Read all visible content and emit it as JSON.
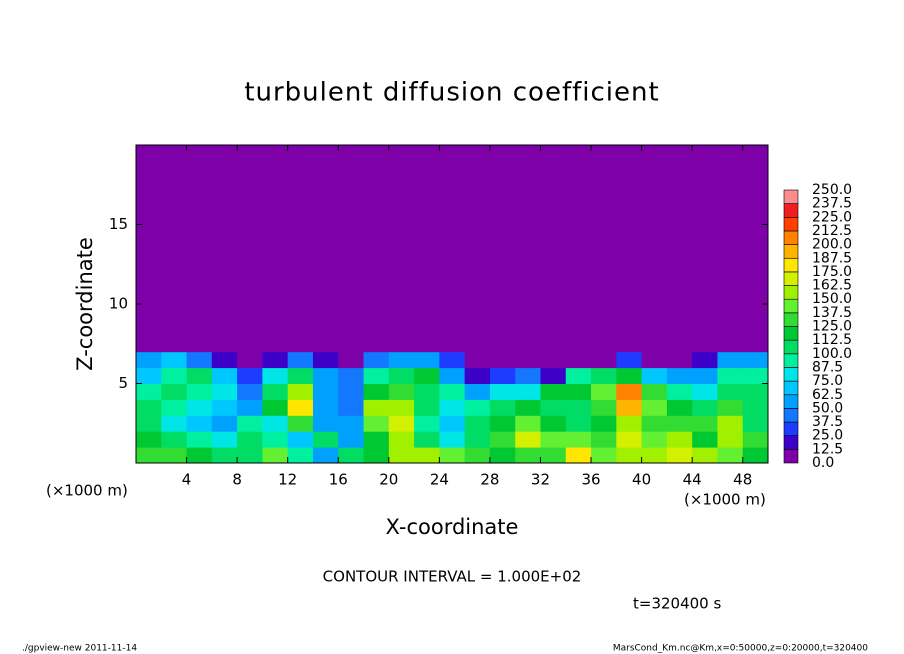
{
  "chart_data": {
    "type": "heatmap",
    "title": "turbulent diffusion coefficient",
    "xlabel": "X-coordinate",
    "ylabel": "Z-coordinate",
    "xunit_left": "(×1000 m)",
    "xunit_right": "(×1000 m)",
    "annotation": "CONTOUR INTERVAL = 1.000E+02",
    "time_label": "t=320400 s",
    "footer_left": "./gpview-new  2011-11-14",
    "footer_right": "MarsCond_Km.nc@Km,x=0:50000,z=0:20000,t=320400",
    "xlim": [
      0,
      50
    ],
    "ylim": [
      0,
      20
    ],
    "xticks": [
      4,
      8,
      12,
      16,
      20,
      24,
      28,
      32,
      36,
      40,
      44,
      48
    ],
    "yticks": [
      5,
      10,
      15
    ],
    "x_edges": [
      0,
      2,
      4,
      6,
      8,
      10,
      12,
      14,
      16,
      18,
      20,
      22,
      24,
      26,
      28,
      30,
      32,
      34,
      36,
      38,
      40,
      42,
      44,
      46,
      48,
      50
    ],
    "y_edges": [
      0,
      1,
      2,
      3,
      4,
      5,
      6,
      7,
      8,
      20
    ],
    "z": [
      [
        130,
        125,
        120,
        110,
        100,
        140,
        90,
        60,
        110,
        120,
        150,
        160,
        140,
        130,
        120,
        125,
        135,
        180,
        140,
        150,
        160,
        170,
        150,
        140,
        120
      ],
      [
        120,
        110,
        90,
        80,
        100,
        90,
        70,
        100,
        60,
        120,
        150,
        110,
        80,
        110,
        130,
        170,
        140,
        140,
        130,
        170,
        140,
        150,
        120,
        160,
        130
      ],
      [
        110,
        80,
        70,
        60,
        90,
        80,
        130,
        60,
        50,
        140,
        170,
        90,
        70,
        100,
        120,
        140,
        120,
        110,
        120,
        160,
        130,
        130,
        130,
        150,
        110
      ],
      [
        100,
        90,
        80,
        70,
        60,
        120,
        180,
        50,
        40,
        150,
        160,
        100,
        80,
        90,
        110,
        120,
        110,
        110,
        130,
        190,
        140,
        120,
        100,
        130,
        100
      ],
      [
        90,
        100,
        90,
        80,
        40,
        100,
        150,
        60,
        40,
        120,
        130,
        110,
        90,
        60,
        80,
        80,
        120,
        120,
        140,
        210,
        130,
        90,
        80,
        110,
        100
      ],
      [
        70,
        90,
        100,
        70,
        30,
        80,
        110,
        50,
        40,
        90,
        110,
        120,
        60,
        20,
        30,
        40,
        20,
        90,
        100,
        120,
        70,
        50,
        60,
        90,
        90
      ],
      [
        60,
        70,
        40,
        20,
        0,
        20,
        40,
        20,
        10,
        40,
        60,
        50,
        30,
        0,
        0,
        0,
        0,
        0,
        10,
        30,
        10,
        0,
        20,
        50,
        60
      ],
      [
        10,
        10,
        0,
        0,
        0,
        0,
        0,
        0,
        0,
        0,
        5,
        5,
        0,
        0,
        0,
        0,
        0,
        0,
        0,
        0,
        0,
        0,
        0,
        5,
        5
      ],
      [
        0,
        0,
        0,
        0,
        0,
        0,
        0,
        0,
        0,
        0,
        0,
        0,
        0,
        0,
        0,
        0,
        0,
        0,
        0,
        0,
        0,
        0,
        0,
        0,
        0
      ]
    ],
    "levels": [
      {
        "value": 0,
        "label": "0.0"
      },
      12.5,
      {
        "value": 25,
        "label": "25.0"
      },
      37.5,
      {
        "value": 50,
        "label": "50.0"
      },
      62.5,
      {
        "value": 75,
        "label": "75.0"
      },
      87.5,
      {
        "value": 100,
        "label": "100.0"
      },
      112.5,
      {
        "value": 125,
        "label": "125.0"
      },
      137.5,
      {
        "value": 150,
        "label": "150.0"
      },
      162.5,
      {
        "value": 175,
        "label": "175.0"
      },
      187.5,
      {
        "value": 200,
        "label": "200.0"
      },
      212.5,
      {
        "value": 225,
        "label": "225.0"
      },
      237.5,
      {
        "value": 250,
        "label": "250.0"
      }
    ],
    "colors": [
      "#7d00a8",
      "#3c00c8",
      "#1e3cff",
      "#1478ff",
      "#00a0ff",
      "#00c8ff",
      "#00e6e6",
      "#00f0a0",
      "#00dc64",
      "#00c832",
      "#32dc32",
      "#64f032",
      "#a0f000",
      "#d2f000",
      "#ffe600",
      "#ffb400",
      "#ff8200",
      "#ff4000",
      "#f01e1e",
      "#ff8c8c"
    ]
  }
}
